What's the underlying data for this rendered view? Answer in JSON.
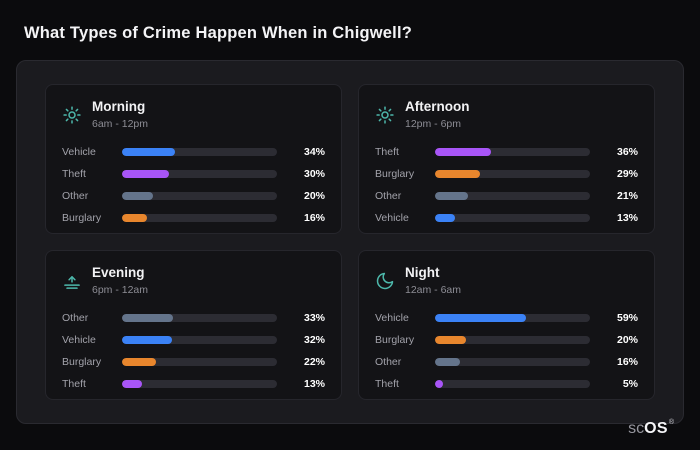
{
  "page": {
    "title": "What Types of Crime Happen When in Chigwell?"
  },
  "footer": {
    "logo_prefix": "sc",
    "logo_main": "OS",
    "registered_mark": "®"
  },
  "colors": {
    "vehicle_blue": "#3b82f6",
    "theft_purple": "#a855f7",
    "other_gray": "#64748b",
    "burglary_orange": "#e8862d",
    "icon_teal": "#4db8ab",
    "bar_track": "#2c2c33",
    "panel_background": "#1b1b1f",
    "card_background": "#131316",
    "page_background": "#0b0b0d"
  },
  "chart_data": [
    {
      "type": "bar",
      "title": "Morning",
      "subtitle": "6am - 12pm",
      "icon": "sun-icon",
      "unit": "%",
      "xlim": [
        0,
        100
      ],
      "categories": [
        "Vehicle",
        "Theft",
        "Other",
        "Burglary"
      ],
      "values": [
        34,
        30,
        20,
        16
      ],
      "colors": [
        "#3b82f6",
        "#a855f7",
        "#64748b",
        "#e8862d"
      ]
    },
    {
      "type": "bar",
      "title": "Afternoon",
      "subtitle": "12pm - 6pm",
      "icon": "sun-icon",
      "unit": "%",
      "xlim": [
        0,
        100
      ],
      "categories": [
        "Theft",
        "Burglary",
        "Other",
        "Vehicle"
      ],
      "values": [
        36,
        29,
        21,
        13
      ],
      "colors": [
        "#a855f7",
        "#e8862d",
        "#64748b",
        "#3b82f6"
      ]
    },
    {
      "type": "bar",
      "title": "Evening",
      "subtitle": "6pm - 12am",
      "icon": "sunset-icon",
      "unit": "%",
      "xlim": [
        0,
        100
      ],
      "categories": [
        "Other",
        "Vehicle",
        "Burglary",
        "Theft"
      ],
      "values": [
        33,
        32,
        22,
        13
      ],
      "colors": [
        "#64748b",
        "#3b82f6",
        "#e8862d",
        "#a855f7"
      ]
    },
    {
      "type": "bar",
      "title": "Night",
      "subtitle": "12am - 6am",
      "icon": "moon-icon",
      "unit": "%",
      "xlim": [
        0,
        100
      ],
      "categories": [
        "Vehicle",
        "Burglary",
        "Other",
        "Theft"
      ],
      "values": [
        59,
        20,
        16,
        5
      ],
      "colors": [
        "#3b82f6",
        "#e8862d",
        "#64748b",
        "#a855f7"
      ]
    }
  ]
}
